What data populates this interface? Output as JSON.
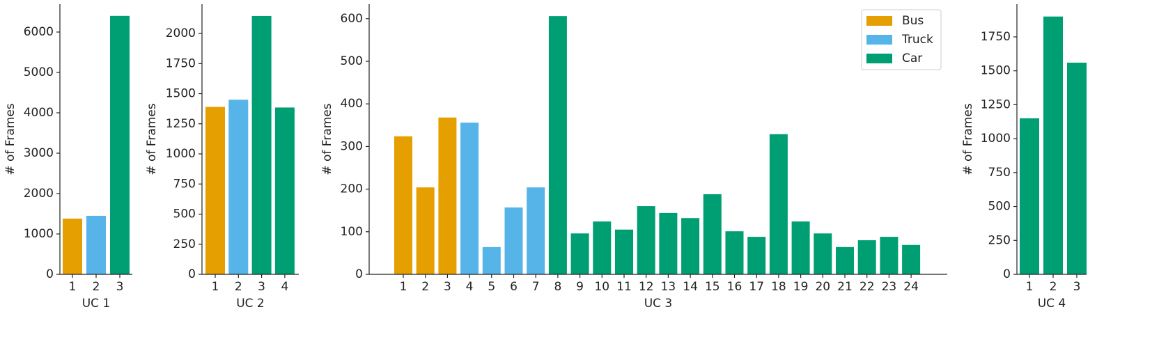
{
  "chart_data": [
    {
      "type": "bar",
      "x_label": "UC 1",
      "y_label": "# of Frames",
      "categories": [
        "1",
        "2",
        "3"
      ],
      "series": [
        {
          "name": "Bus",
          "color": "#E69F00",
          "values": [
            1380,
            null,
            null
          ]
        },
        {
          "name": "Truck",
          "color": "#56B4E9",
          "values": [
            null,
            1450,
            null
          ]
        },
        {
          "name": "Car",
          "color": "#009E73",
          "values": [
            null,
            null,
            6400
          ]
        }
      ],
      "ylim": [
        0,
        6690
      ],
      "yticks": [
        0,
        1000,
        2000,
        3000,
        4000,
        5000,
        6000
      ]
    },
    {
      "type": "bar",
      "x_label": "UC 2",
      "y_label": "# of Frames",
      "categories": [
        "1",
        "2",
        "3",
        "4"
      ],
      "series": [
        {
          "name": "Bus",
          "color": "#E69F00",
          "values": [
            1390,
            null,
            null,
            null
          ]
        },
        {
          "name": "Truck",
          "color": "#56B4E9",
          "values": [
            null,
            1450,
            null,
            null
          ]
        },
        {
          "name": "Car",
          "color": "#009E73",
          "values": [
            null,
            null,
            2145,
            1385
          ]
        }
      ],
      "ylim": [
        0,
        2243
      ],
      "yticks": [
        0,
        250,
        500,
        750,
        1000,
        1250,
        1500,
        1750,
        2000
      ]
    },
    {
      "type": "bar",
      "x_label": "UC 3",
      "y_label": "# of Frames",
      "legend": "upper right",
      "categories": [
        "1",
        "2",
        "3",
        "4",
        "5",
        "6",
        "7",
        "8",
        "9",
        "10",
        "11",
        "12",
        "13",
        "14",
        "15",
        "16",
        "17",
        "18",
        "19",
        "20",
        "21",
        "22",
        "23",
        "24"
      ],
      "series": [
        {
          "name": "Bus",
          "color": "#E69F00",
          "values": [
            324,
            204,
            368,
            null,
            null,
            null,
            null,
            null,
            null,
            null,
            null,
            null,
            null,
            null,
            null,
            null,
            null,
            null,
            null,
            null,
            null,
            null,
            null,
            null
          ]
        },
        {
          "name": "Truck",
          "color": "#56B4E9",
          "values": [
            null,
            null,
            null,
            356,
            64,
            157,
            204,
            null,
            null,
            null,
            null,
            null,
            null,
            null,
            null,
            null,
            null,
            null,
            null,
            null,
            null,
            null,
            null,
            null
          ]
        },
        {
          "name": "Car",
          "color": "#009E73",
          "values": [
            null,
            null,
            null,
            null,
            null,
            null,
            null,
            606,
            96,
            124,
            105,
            160,
            144,
            132,
            188,
            101,
            88,
            329,
            124,
            96,
            64,
            80,
            88,
            69
          ]
        }
      ],
      "ylim": [
        0,
        634
      ],
      "yticks": [
        0,
        100,
        200,
        300,
        400,
        500,
        600
      ]
    },
    {
      "type": "bar",
      "x_label": "UC 4",
      "y_label": "# of Frames",
      "categories": [
        "1",
        "2",
        "3"
      ],
      "series": [
        {
          "name": "Car",
          "color": "#009E73",
          "values": [
            1150,
            1900,
            1560
          ]
        }
      ],
      "ylim": [
        0,
        1991
      ],
      "yticks": [
        0,
        250,
        500,
        750,
        1000,
        1250,
        1500,
        1750
      ]
    }
  ]
}
